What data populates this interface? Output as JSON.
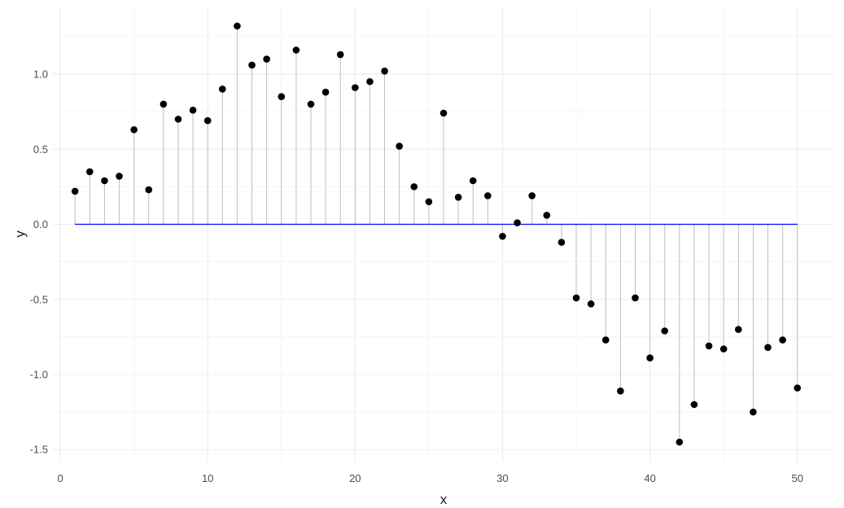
{
  "chart_data": {
    "type": "scatter",
    "subtype": "lollipop",
    "title": "",
    "xlabel": "x",
    "ylabel": "y",
    "xlim": [
      -0.5,
      52.5
    ],
    "ylim": [
      -1.58,
      1.45
    ],
    "x_ticks": [
      0,
      10,
      20,
      30,
      40,
      50
    ],
    "y_ticks": [
      -1.5,
      -1.0,
      -0.5,
      0.0,
      0.5,
      1.0
    ],
    "x_tick_labels": [
      "0",
      "10",
      "20",
      "30",
      "40",
      "50"
    ],
    "y_tick_labels": [
      "-1.5",
      "-1.0",
      "-0.5",
      "0.0",
      "0.5",
      "1.0"
    ],
    "grid": true,
    "baseline": {
      "y": 0,
      "x_from": 1,
      "x_to": 50,
      "color": "#0000ff"
    },
    "stem_color": "#bebebe",
    "point_color": "#000000",
    "series": [
      {
        "x": [
          1,
          2,
          3,
          4,
          5,
          6,
          7,
          8,
          9,
          10,
          11,
          12,
          13,
          14,
          15,
          16,
          17,
          18,
          19,
          20,
          21,
          22,
          23,
          24,
          25,
          26,
          27,
          28,
          29,
          30,
          31,
          32,
          33,
          34,
          35,
          36,
          37,
          38,
          39,
          40,
          41,
          42,
          43,
          44,
          45,
          46,
          47,
          48,
          49,
          50
        ],
        "y": [
          0.22,
          0.35,
          0.29,
          0.32,
          0.63,
          0.23,
          0.8,
          0.7,
          0.76,
          0.69,
          0.9,
          1.32,
          1.06,
          1.1,
          0.85,
          1.16,
          0.8,
          0.88,
          1.13,
          0.91,
          0.95,
          1.02,
          0.52,
          0.25,
          0.15,
          0.74,
          0.18,
          0.29,
          0.19,
          -0.08,
          0.01,
          0.19,
          0.06,
          -0.12,
          -0.49,
          -0.53,
          -0.77,
          -1.11,
          -0.49,
          -0.89,
          -0.71,
          -1.45,
          -1.2,
          -0.81,
          -0.83,
          -0.7,
          -1.25,
          -0.82,
          -0.77,
          -1.09
        ]
      }
    ]
  }
}
